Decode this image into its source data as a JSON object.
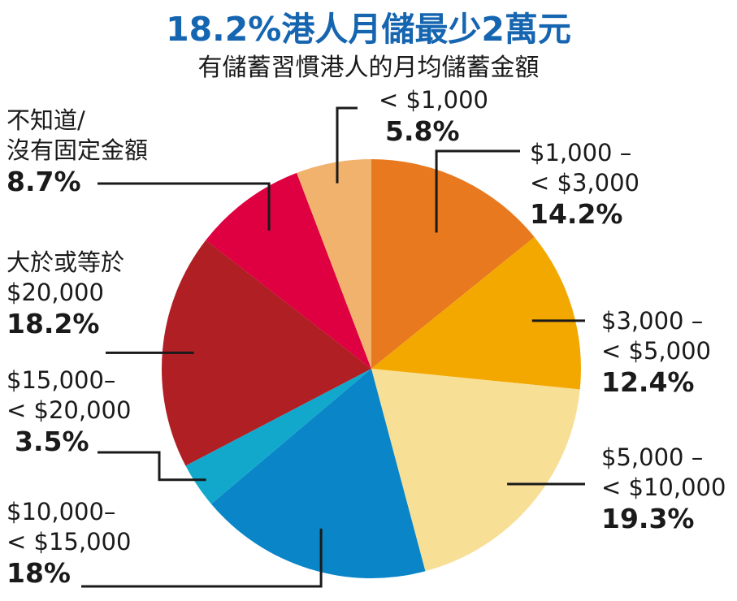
{
  "title": "18.2%港人月儲最少2萬元",
  "subtitle": "有儲蓄習慣港人的月均儲蓄金額",
  "chart_data": {
    "type": "pie",
    "slices": [
      {
        "label_lines": [
          "$1,000 –",
          "< $3,000"
        ],
        "value": 14.2,
        "pct_text": "14.2%",
        "color": "#e8791e"
      },
      {
        "label_lines": [
          "$3,000  –",
          "< $5,000"
        ],
        "value": 12.4,
        "pct_text": "12.4%",
        "color": "#f3a800"
      },
      {
        "label_lines": [
          "$5,000  –",
          "< $10,000"
        ],
        "value": 19.3,
        "pct_text": "19.3%",
        "color": "#f7df95"
      },
      {
        "label_lines": [
          "$10,000–",
          "< $15,000"
        ],
        "value": 18.0,
        "pct_text": "18%",
        "color": "#0a85c8"
      },
      {
        "label_lines": [
          "$15,000–",
          "< $20,000"
        ],
        "value": 3.5,
        "pct_text": "3.5%",
        "color": "#12a8cc"
      },
      {
        "label_lines": [
          "大於或等於",
          "$20,000"
        ],
        "value": 18.2,
        "pct_text": "18.2%",
        "color": "#b01f24"
      },
      {
        "label_lines": [
          "不知道/",
          "沒有固定金額"
        ],
        "value": 8.7,
        "pct_text": "8.7%",
        "color": "#de0040"
      },
      {
        "label_lines": [
          "< $1,000"
        ],
        "value": 5.8,
        "pct_text": "5.8%",
        "color": "#f1b26d"
      }
    ]
  }
}
